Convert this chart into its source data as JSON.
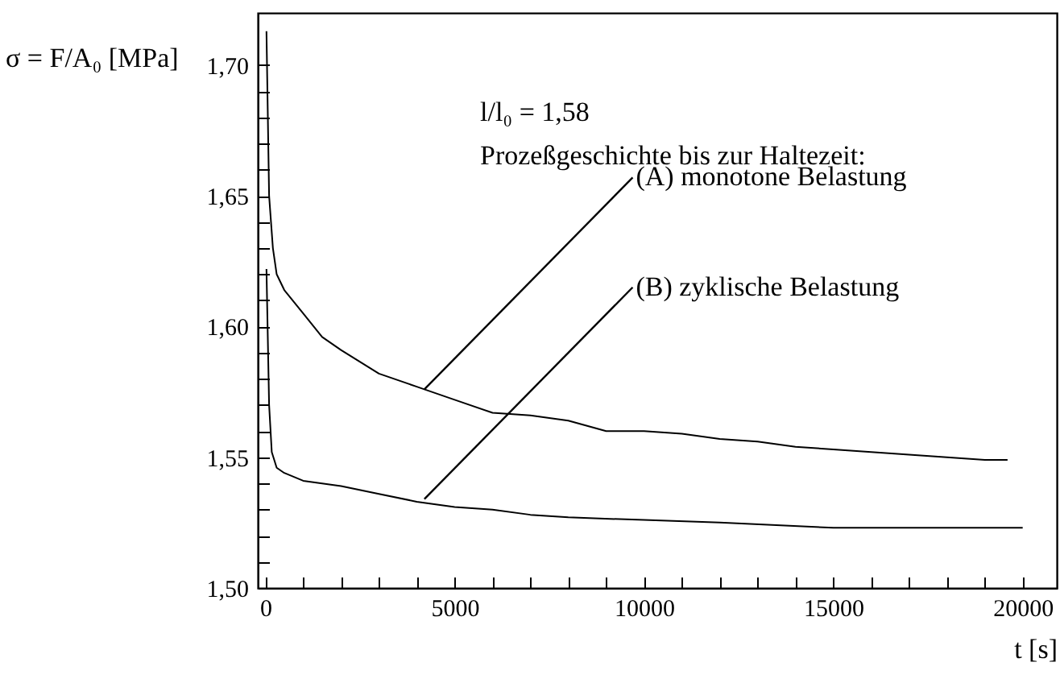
{
  "chart_data": {
    "type": "line",
    "xlabel": "t [s]",
    "ylabel": "σ = F/A₀ [MPa]",
    "annotations": [
      "l/l₀ = 1,58",
      "Prozeßgeschichte bis zur Haltezeit:",
      {
        "text": "(A) monotone Belastung",
        "x": 4200,
        "y": 1.576
      },
      {
        "text": "(B) zyklische Belastung",
        "x": 4200,
        "y": 1.534
      }
    ],
    "series": [
      {
        "color": "#000000",
        "x": [
          30,
          100,
          200,
          300,
          500,
          1000,
          1500,
          2000,
          3000,
          4000,
          5000,
          6000,
          7000,
          8000,
          9000,
          10000,
          11000,
          12000,
          13000,
          14000,
          15000,
          16000,
          17000,
          18000,
          19000,
          19600
        ],
        "values": [
          1.713,
          1.65,
          1.63,
          1.62,
          1.614,
          1.605,
          1.596,
          1.591,
          1.582,
          1.577,
          1.572,
          1.567,
          1.566,
          1.564,
          1.56,
          1.56,
          1.559,
          1.557,
          1.556,
          1.554,
          1.553,
          1.552,
          1.551,
          1.55,
          1.549,
          1.549
        ]
      },
      {
        "color": "#000000",
        "x": [
          30,
          100,
          170,
          300,
          500,
          1000,
          2000,
          3000,
          4000,
          5000,
          6000,
          7000,
          8000,
          10000,
          12000,
          15000,
          17000,
          20000
        ],
        "values": [
          1.622,
          1.57,
          1.552,
          1.546,
          1.544,
          1.541,
          1.539,
          1.536,
          1.533,
          1.531,
          1.53,
          1.528,
          1.527,
          1.526,
          1.525,
          1.523,
          1.523,
          1.523
        ]
      }
    ],
    "xlim": [
      -200,
      20900
    ],
    "ylim": [
      1.5,
      1.72
    ],
    "xticks": [
      0,
      {
        "value": 1000,
        "label": null
      },
      {
        "value": 2000,
        "label": null
      },
      {
        "value": 3000,
        "label": null
      },
      {
        "value": 4000,
        "label": null
      },
      5000,
      {
        "value": 6000,
        "label": null
      },
      {
        "value": 7000,
        "label": null
      },
      {
        "value": 8000,
        "label": null
      },
      {
        "value": 9000,
        "label": null
      },
      10000,
      {
        "value": 11000,
        "label": null
      },
      {
        "value": 12000,
        "label": null
      },
      {
        "value": 13000,
        "label": null
      },
      {
        "value": 14000,
        "label": null
      },
      15000,
      {
        "value": 16000,
        "label": null
      },
      {
        "value": 17000,
        "label": null
      },
      {
        "value": 18000,
        "label": null
      },
      {
        "value": 19000,
        "label": null
      },
      20000
    ],
    "yticks": [
      {
        "value": 1.5,
        "label": "1,50"
      },
      {
        "value": 1.51,
        "label": null
      },
      {
        "value": 1.52,
        "label": null
      },
      {
        "value": 1.53,
        "label": null
      },
      {
        "value": 1.54,
        "label": null
      },
      {
        "value": 1.55,
        "label": "1,55"
      },
      {
        "value": 1.56,
        "label": null
      },
      {
        "value": 1.57,
        "label": null
      },
      {
        "value": 1.58,
        "label": null
      },
      {
        "value": 1.59,
        "label": null
      },
      {
        "value": 1.6,
        "label": "1,60"
      },
      {
        "value": 1.61,
        "label": null
      },
      {
        "value": 1.62,
        "label": null
      },
      {
        "value": 1.63,
        "label": null
      },
      {
        "value": 1.64,
        "label": null
      },
      {
        "value": 1.65,
        "label": "1,65"
      },
      {
        "value": 1.66,
        "label": null
      },
      {
        "value": 1.67,
        "label": null
      },
      {
        "value": 1.68,
        "label": null
      },
      {
        "value": 1.69,
        "label": null
      },
      {
        "value": 1.7,
        "label": "1,70"
      }
    ],
    "grid": false,
    "marker": "none",
    "line_style": "solid"
  }
}
